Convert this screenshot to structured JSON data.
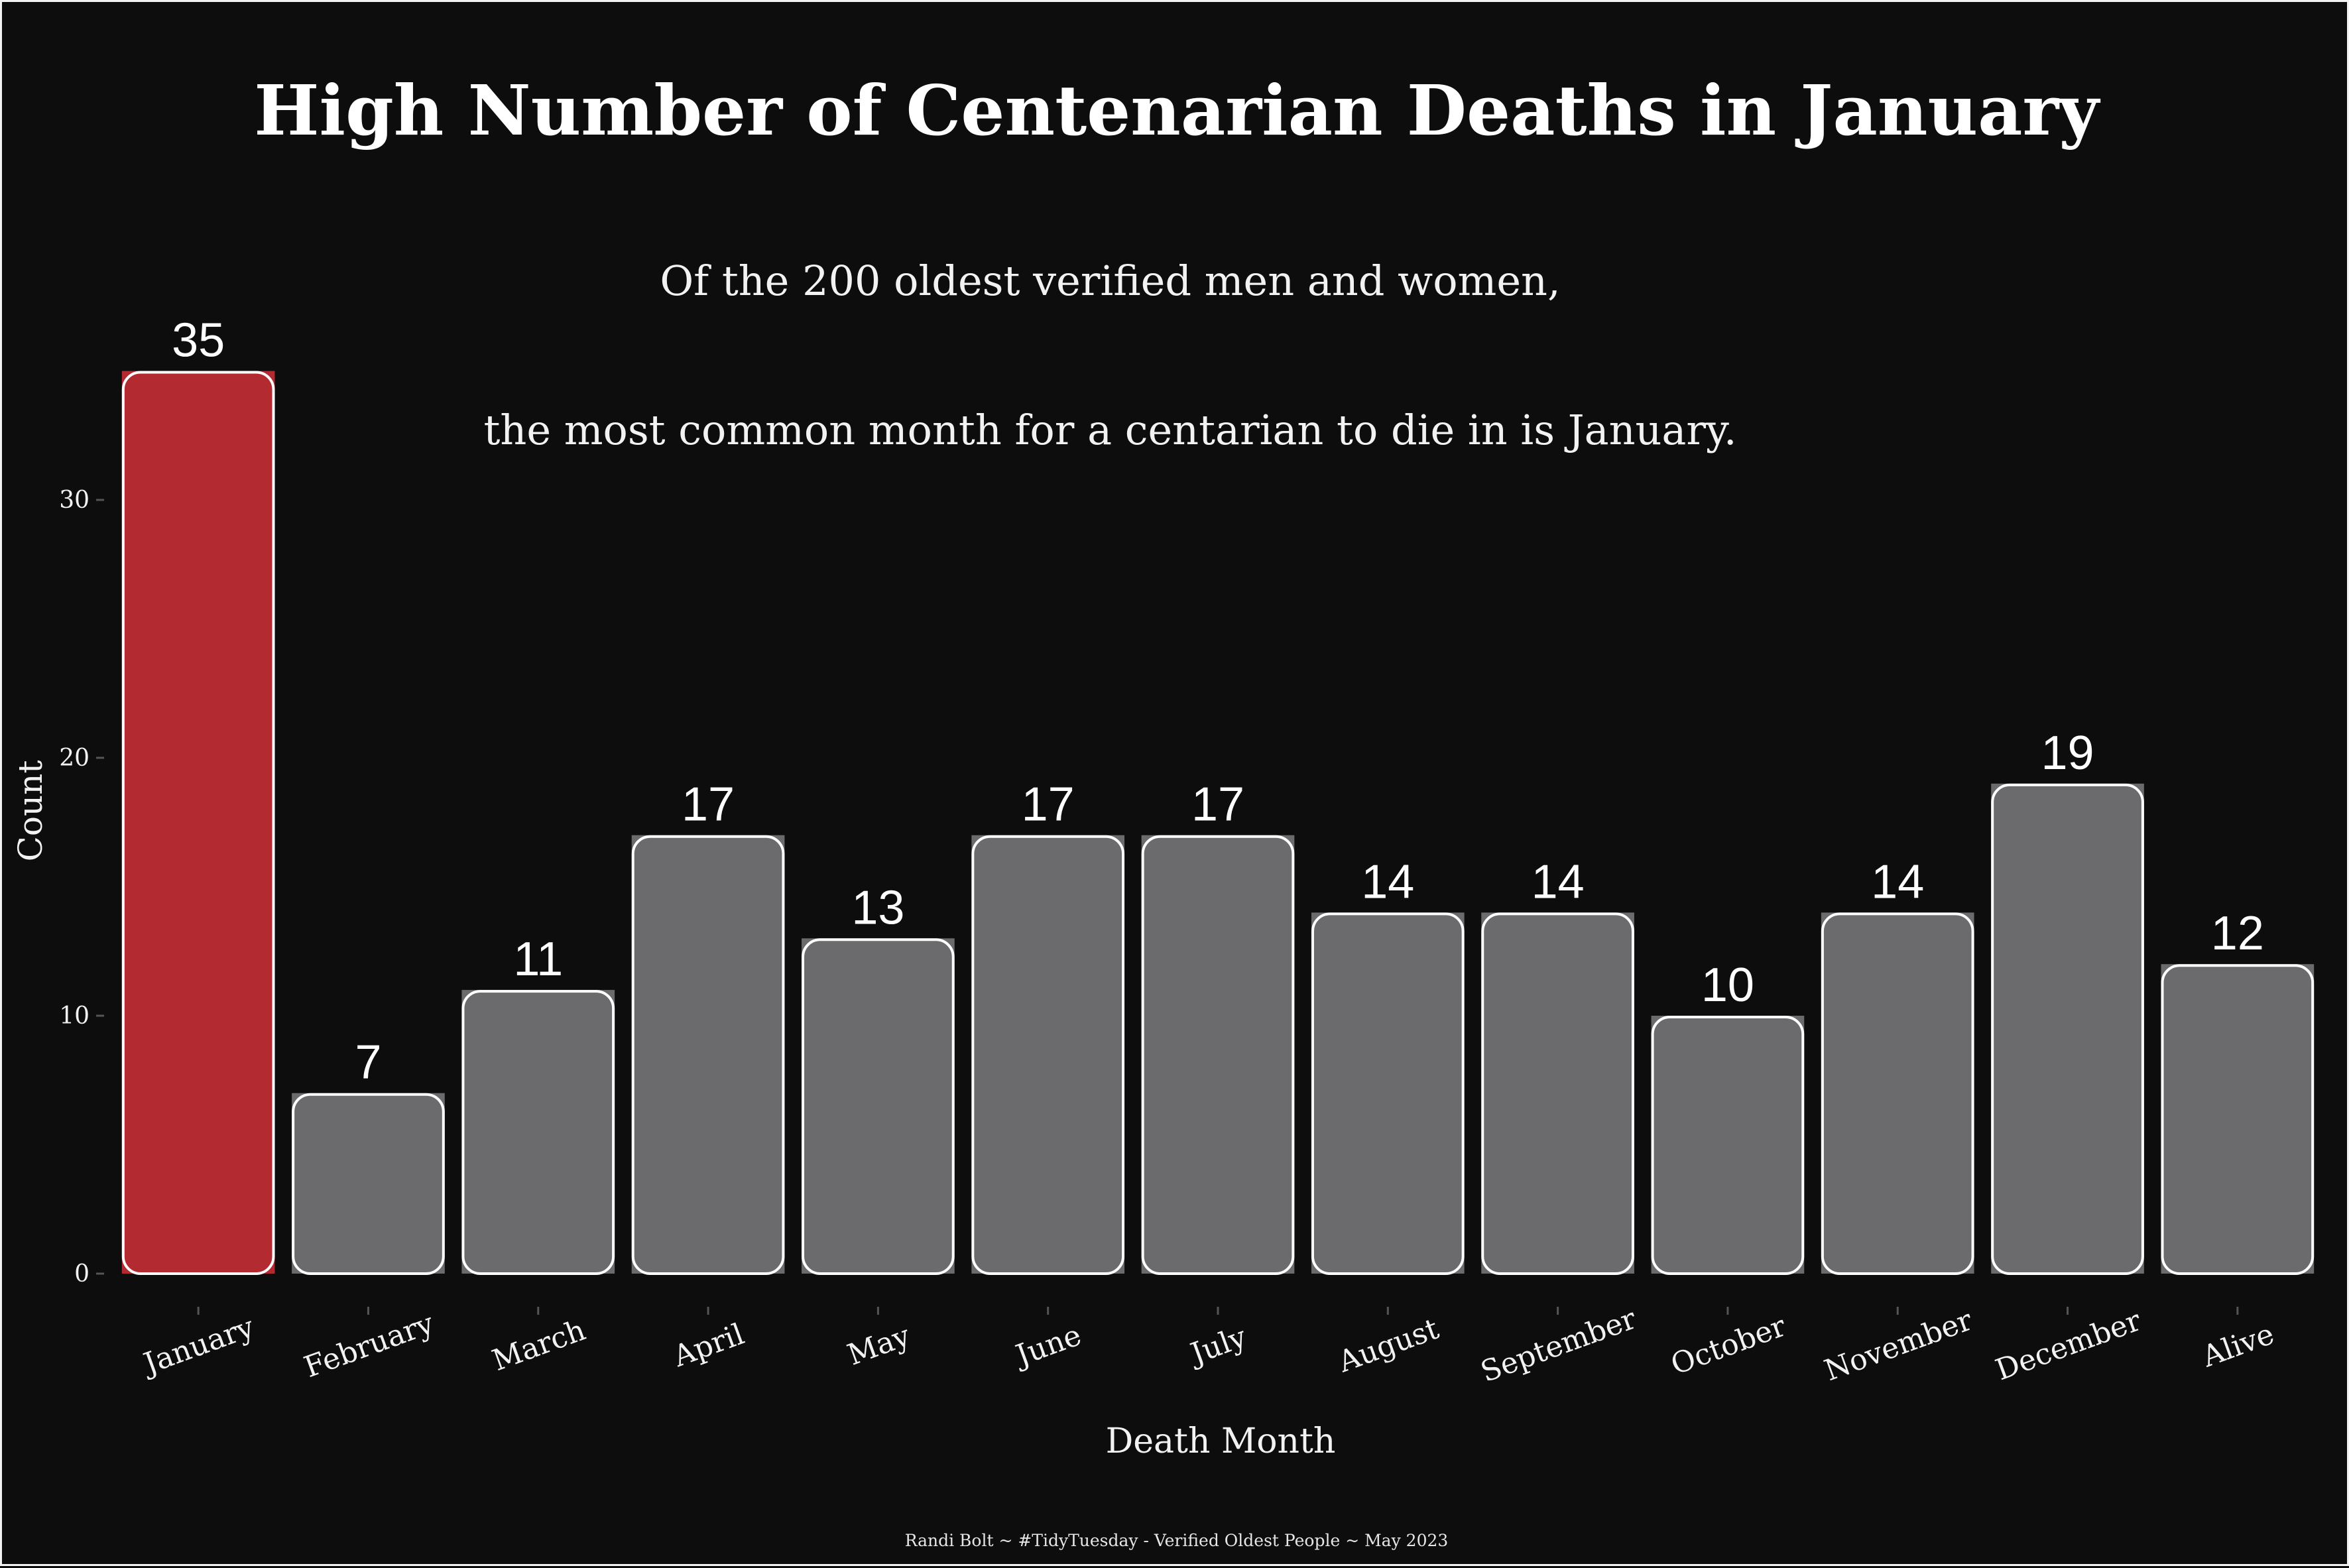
{
  "title": "High Number of Centenarian Deaths in January",
  "subtitle_line1": "Of the 200 oldest verified men and women,",
  "subtitle_line2": "the most common month for a centarian to die in is January.",
  "caption": "Randi Bolt ~ #TidyTuesday - Verified Oldest People ~ May 2023",
  "colors": {
    "background": "#0d0d0d",
    "highlight": "#b32a31",
    "bar": "#6b6a6c",
    "outline": "#ffffff",
    "text": "#f2f2f2"
  },
  "chart_data": {
    "type": "bar",
    "xlabel": "Death Month",
    "ylabel": "Count",
    "categories": [
      "January",
      "February",
      "March",
      "April",
      "May",
      "June",
      "July",
      "August",
      "September",
      "October",
      "November",
      "December",
      "Alive"
    ],
    "values": [
      35,
      7,
      11,
      17,
      13,
      17,
      17,
      14,
      14,
      10,
      14,
      19,
      12
    ],
    "highlight": "January",
    "yticks": [
      0,
      10,
      20,
      30
    ],
    "ylim": [
      0,
      35
    ],
    "grid": false,
    "legend": "none"
  }
}
